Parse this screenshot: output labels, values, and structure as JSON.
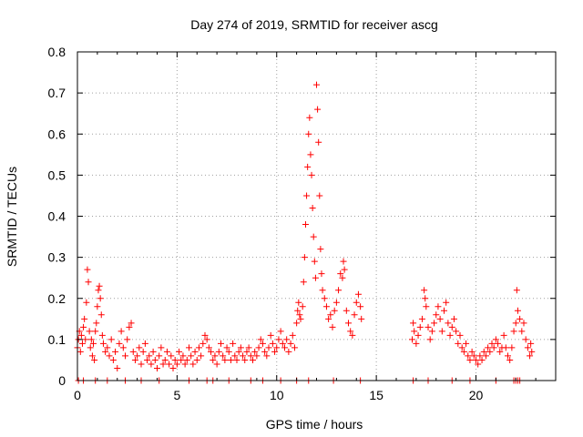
{
  "chart_data": {
    "type": "scatter",
    "title": "Day 274 of 2019, SRMTID for receiver ascg",
    "xlabel": "GPS time / hours",
    "ylabel": "SRMTID / TECUs",
    "xlim": [
      0,
      24
    ],
    "ylim": [
      0,
      0.8
    ],
    "xticks": [
      0,
      5,
      10,
      15,
      20
    ],
    "xtick_labels": [
      "0",
      "5",
      "10",
      "15",
      "20"
    ],
    "yticks": [
      0,
      0.1,
      0.2,
      0.3,
      0.4,
      0.5,
      0.6,
      0.7,
      0.8
    ],
    "ytick_labels": [
      "0",
      "0.1",
      "0.2",
      "0.3",
      "0.4",
      "0.5",
      "0.6",
      "0.7",
      "0.8"
    ],
    "grid": true,
    "marker": "+",
    "color": "#ff0000",
    "series": [
      {
        "name": "SRMTID",
        "points": [
          [
            0.0,
            0.08
          ],
          [
            0.05,
            0.1
          ],
          [
            0.1,
            0.12
          ],
          [
            0.15,
            0.07
          ],
          [
            0.2,
            0.11
          ],
          [
            0.25,
            0.09
          ],
          [
            0.3,
            0.13
          ],
          [
            0.35,
            0.15
          ],
          [
            0.4,
            0.1
          ],
          [
            0.45,
            0.19
          ],
          [
            0.5,
            0.27
          ],
          [
            0.55,
            0.24
          ],
          [
            0.6,
            0.12
          ],
          [
            0.65,
            0.08
          ],
          [
            0.7,
            0.1
          ],
          [
            0.75,
            0.06
          ],
          [
            0.8,
            0.09
          ],
          [
            0.85,
            0.05
          ],
          [
            0.9,
            0.12
          ],
          [
            0.95,
            0.14
          ],
          [
            1.0,
            0.18
          ],
          [
            1.05,
            0.22
          ],
          [
            1.1,
            0.23
          ],
          [
            1.15,
            0.2
          ],
          [
            1.2,
            0.16
          ],
          [
            1.25,
            0.11
          ],
          [
            1.3,
            0.09
          ],
          [
            1.4,
            0.07
          ],
          [
            1.5,
            0.08
          ],
          [
            1.6,
            0.06
          ],
          [
            1.7,
            0.1
          ],
          [
            1.8,
            0.05
          ],
          [
            1.9,
            0.07
          ],
          [
            2.0,
            0.03
          ],
          [
            2.1,
            0.09
          ],
          [
            2.2,
            0.12
          ],
          [
            2.3,
            0.08
          ],
          [
            2.4,
            0.06
          ],
          [
            2.5,
            0.1
          ],
          [
            2.6,
            0.13
          ],
          [
            2.7,
            0.14
          ],
          [
            2.8,
            0.07
          ],
          [
            2.9,
            0.05
          ],
          [
            3.0,
            0.06
          ],
          [
            3.1,
            0.08
          ],
          [
            3.2,
            0.04
          ],
          [
            3.3,
            0.07
          ],
          [
            3.4,
            0.09
          ],
          [
            3.5,
            0.05
          ],
          [
            3.6,
            0.06
          ],
          [
            3.7,
            0.04
          ],
          [
            3.8,
            0.07
          ],
          [
            3.9,
            0.05
          ],
          [
            4.0,
            0.03
          ],
          [
            4.1,
            0.06
          ],
          [
            4.2,
            0.08
          ],
          [
            4.3,
            0.04
          ],
          [
            4.4,
            0.05
          ],
          [
            4.5,
            0.07
          ],
          [
            4.6,
            0.04
          ],
          [
            4.7,
            0.06
          ],
          [
            4.8,
            0.03
          ],
          [
            4.9,
            0.05
          ],
          [
            5.0,
            0.04
          ],
          [
            5.1,
            0.07
          ],
          [
            5.2,
            0.05
          ],
          [
            5.3,
            0.06
          ],
          [
            5.4,
            0.04
          ],
          [
            5.5,
            0.05
          ],
          [
            5.6,
            0.08
          ],
          [
            5.7,
            0.06
          ],
          [
            5.8,
            0.04
          ],
          [
            5.9,
            0.07
          ],
          [
            6.0,
            0.05
          ],
          [
            6.1,
            0.08
          ],
          [
            6.2,
            0.06
          ],
          [
            6.3,
            0.09
          ],
          [
            6.4,
            0.11
          ],
          [
            6.5,
            0.1
          ],
          [
            6.6,
            0.08
          ],
          [
            6.7,
            0.07
          ],
          [
            6.8,
            0.05
          ],
          [
            6.9,
            0.06
          ],
          [
            7.0,
            0.04
          ],
          [
            7.1,
            0.07
          ],
          [
            7.2,
            0.09
          ],
          [
            7.3,
            0.06
          ],
          [
            7.4,
            0.05
          ],
          [
            7.5,
            0.08
          ],
          [
            7.6,
            0.07
          ],
          [
            7.7,
            0.05
          ],
          [
            7.8,
            0.09
          ],
          [
            7.9,
            0.06
          ],
          [
            8.0,
            0.05
          ],
          [
            8.1,
            0.07
          ],
          [
            8.2,
            0.08
          ],
          [
            8.3,
            0.06
          ],
          [
            8.4,
            0.05
          ],
          [
            8.5,
            0.07
          ],
          [
            8.6,
            0.08
          ],
          [
            8.7,
            0.06
          ],
          [
            8.8,
            0.05
          ],
          [
            8.9,
            0.07
          ],
          [
            9.0,
            0.06
          ],
          [
            9.1,
            0.08
          ],
          [
            9.2,
            0.1
          ],
          [
            9.3,
            0.09
          ],
          [
            9.4,
            0.07
          ],
          [
            9.5,
            0.06
          ],
          [
            9.6,
            0.08
          ],
          [
            9.7,
            0.11
          ],
          [
            9.8,
            0.09
          ],
          [
            9.9,
            0.07
          ],
          [
            10.0,
            0.08
          ],
          [
            10.1,
            0.1
          ],
          [
            10.2,
            0.12
          ],
          [
            10.3,
            0.09
          ],
          [
            10.4,
            0.08
          ],
          [
            10.5,
            0.1
          ],
          [
            10.6,
            0.07
          ],
          [
            10.7,
            0.09
          ],
          [
            10.8,
            0.11
          ],
          [
            10.9,
            0.08
          ],
          [
            11.0,
            0.14
          ],
          [
            11.05,
            0.17
          ],
          [
            11.1,
            0.19
          ],
          [
            11.15,
            0.16
          ],
          [
            11.2,
            0.15
          ],
          [
            11.3,
            0.18
          ],
          [
            11.35,
            0.24
          ],
          [
            11.4,
            0.3
          ],
          [
            11.45,
            0.38
          ],
          [
            11.5,
            0.45
          ],
          [
            11.55,
            0.52
          ],
          [
            11.6,
            0.6
          ],
          [
            11.65,
            0.64
          ],
          [
            11.7,
            0.55
          ],
          [
            11.75,
            0.5
          ],
          [
            11.8,
            0.42
          ],
          [
            11.85,
            0.35
          ],
          [
            11.9,
            0.29
          ],
          [
            11.95,
            0.25
          ],
          [
            12.0,
            0.72
          ],
          [
            12.05,
            0.66
          ],
          [
            12.1,
            0.58
          ],
          [
            12.15,
            0.45
          ],
          [
            12.2,
            0.32
          ],
          [
            12.25,
            0.26
          ],
          [
            12.3,
            0.22
          ],
          [
            12.4,
            0.2
          ],
          [
            12.5,
            0.18
          ],
          [
            12.6,
            0.15
          ],
          [
            12.7,
            0.16
          ],
          [
            12.8,
            0.13
          ],
          [
            12.9,
            0.17
          ],
          [
            13.0,
            0.19
          ],
          [
            13.1,
            0.22
          ],
          [
            13.2,
            0.26
          ],
          [
            13.3,
            0.25
          ],
          [
            13.35,
            0.29
          ],
          [
            13.4,
            0.27
          ],
          [
            13.5,
            0.17
          ],
          [
            13.6,
            0.14
          ],
          [
            13.7,
            0.12
          ],
          [
            13.8,
            0.11
          ],
          [
            13.9,
            0.16
          ],
          [
            14.0,
            0.19
          ],
          [
            14.1,
            0.21
          ],
          [
            14.2,
            0.18
          ],
          [
            14.25,
            0.15
          ],
          [
            16.8,
            0.1
          ],
          [
            16.85,
            0.14
          ],
          [
            16.9,
            0.12
          ],
          [
            17.0,
            0.09
          ],
          [
            17.1,
            0.11
          ],
          [
            17.2,
            0.13
          ],
          [
            17.3,
            0.15
          ],
          [
            17.4,
            0.22
          ],
          [
            17.45,
            0.2
          ],
          [
            17.5,
            0.18
          ],
          [
            17.6,
            0.13
          ],
          [
            17.7,
            0.1
          ],
          [
            17.8,
            0.12
          ],
          [
            17.9,
            0.14
          ],
          [
            18.0,
            0.16
          ],
          [
            18.1,
            0.18
          ],
          [
            18.2,
            0.15
          ],
          [
            18.3,
            0.12
          ],
          [
            18.4,
            0.17
          ],
          [
            18.5,
            0.19
          ],
          [
            18.6,
            0.14
          ],
          [
            18.7,
            0.11
          ],
          [
            18.8,
            0.13
          ],
          [
            18.9,
            0.15
          ],
          [
            19.0,
            0.12
          ],
          [
            19.1,
            0.09
          ],
          [
            19.2,
            0.11
          ],
          [
            19.3,
            0.08
          ],
          [
            19.4,
            0.07
          ],
          [
            19.5,
            0.09
          ],
          [
            19.6,
            0.06
          ],
          [
            19.7,
            0.05
          ],
          [
            19.8,
            0.07
          ],
          [
            19.9,
            0.06
          ],
          [
            20.0,
            0.05
          ],
          [
            20.1,
            0.04
          ],
          [
            20.2,
            0.06
          ],
          [
            20.3,
            0.05
          ],
          [
            20.4,
            0.07
          ],
          [
            20.5,
            0.06
          ],
          [
            20.6,
            0.08
          ],
          [
            20.7,
            0.07
          ],
          [
            20.8,
            0.09
          ],
          [
            20.9,
            0.08
          ],
          [
            21.0,
            0.1
          ],
          [
            21.1,
            0.09
          ],
          [
            21.2,
            0.07
          ],
          [
            21.3,
            0.08
          ],
          [
            21.4,
            0.11
          ],
          [
            21.5,
            0.08
          ],
          [
            21.6,
            0.06
          ],
          [
            21.7,
            0.05
          ],
          [
            21.8,
            0.08
          ],
          [
            21.9,
            0.12
          ],
          [
            22.0,
            0.14
          ],
          [
            22.05,
            0.22
          ],
          [
            22.1,
            0.17
          ],
          [
            22.2,
            0.15
          ],
          [
            22.3,
            0.12
          ],
          [
            22.4,
            0.14
          ],
          [
            22.5,
            0.1
          ],
          [
            22.6,
            0.08
          ],
          [
            22.7,
            0.06
          ],
          [
            22.75,
            0.09
          ],
          [
            22.8,
            0.07
          ],
          [
            0.05,
            0.0
          ],
          [
            0.3,
            0.0
          ],
          [
            0.9,
            0.0
          ],
          [
            1.5,
            0.0
          ],
          [
            2.4,
            0.0
          ],
          [
            3.2,
            0.0
          ],
          [
            4.1,
            0.0
          ],
          [
            5.6,
            0.0
          ],
          [
            6.5,
            0.0
          ],
          [
            6.8,
            0.0
          ],
          [
            7.6,
            0.0
          ],
          [
            8.7,
            0.0
          ],
          [
            9.3,
            0.0
          ],
          [
            10.2,
            0.0
          ],
          [
            11.0,
            0.0
          ],
          [
            11.6,
            0.0
          ],
          [
            12.85,
            0.0
          ],
          [
            14.2,
            0.0
          ],
          [
            16.85,
            0.0
          ],
          [
            17.6,
            0.0
          ],
          [
            18.8,
            0.0
          ],
          [
            19.7,
            0.0
          ],
          [
            21.0,
            0.0
          ],
          [
            21.9,
            0.0
          ],
          [
            22.0,
            0.0
          ],
          [
            22.1,
            0.0
          ],
          [
            22.2,
            0.0
          ]
        ]
      }
    ]
  }
}
